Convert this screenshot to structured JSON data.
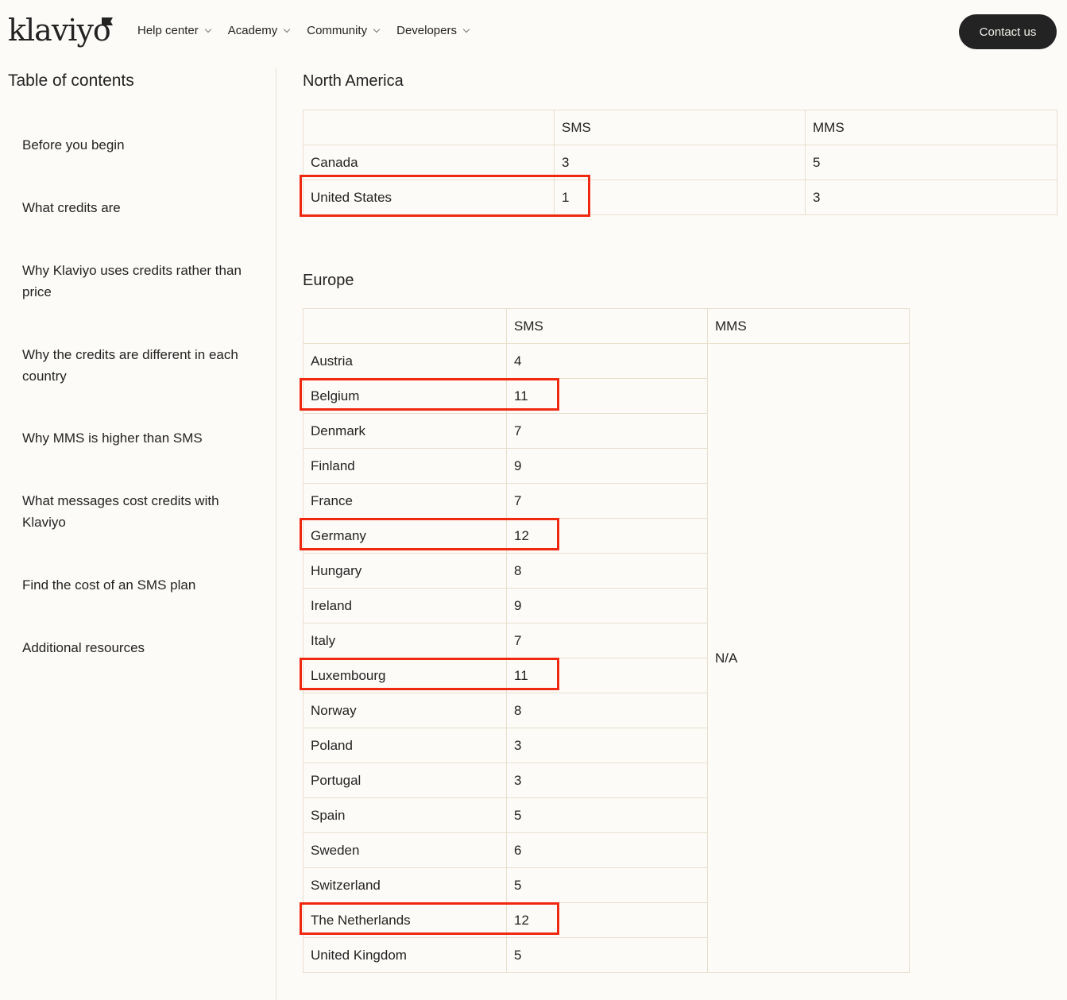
{
  "header": {
    "logo": "klaviyo",
    "nav": [
      {
        "label": "Help center"
      },
      {
        "label": "Academy"
      },
      {
        "label": "Community"
      },
      {
        "label": "Developers"
      }
    ],
    "contact_label": "Contact us"
  },
  "toc": {
    "title": "Table of contents",
    "items": [
      {
        "label": "Before you begin"
      },
      {
        "label": "What credits are"
      },
      {
        "label": "Why Klaviyo uses credits rather than price"
      },
      {
        "label": "Why the credits are different in each country"
      },
      {
        "label": "Why MMS is higher than SMS"
      },
      {
        "label": "What messages cost credits with Klaviyo"
      },
      {
        "label": "Find the cost of an SMS plan"
      },
      {
        "label": "Additional resources"
      }
    ]
  },
  "north_america": {
    "title": "North America",
    "headers": [
      "",
      "SMS",
      "MMS"
    ],
    "rows": [
      {
        "country": "Canada",
        "sms": "3",
        "mms": "5"
      },
      {
        "country": "United States",
        "sms": "1",
        "mms": "3"
      }
    ],
    "highlighted": [
      1
    ]
  },
  "europe": {
    "title": "Europe",
    "headers": [
      "",
      "SMS",
      "MMS"
    ],
    "mms_all": "N/A",
    "rows": [
      {
        "country": "Austria",
        "sms": "4"
      },
      {
        "country": "Belgium",
        "sms": "11"
      },
      {
        "country": "Denmark",
        "sms": "7"
      },
      {
        "country": "Finland",
        "sms": "9"
      },
      {
        "country": "France",
        "sms": "7"
      },
      {
        "country": "Germany",
        "sms": "12"
      },
      {
        "country": "Hungary",
        "sms": "8"
      },
      {
        "country": "Ireland",
        "sms": "9"
      },
      {
        "country": "Italy",
        "sms": "7"
      },
      {
        "country": "Luxembourg",
        "sms": "11"
      },
      {
        "country": "Norway",
        "sms": "8"
      },
      {
        "country": "Poland",
        "sms": "3"
      },
      {
        "country": "Portugal",
        "sms": "3"
      },
      {
        "country": "Spain",
        "sms": "5"
      },
      {
        "country": "Sweden",
        "sms": "6"
      },
      {
        "country": "Switzerland",
        "sms": "5"
      },
      {
        "country": "The Netherlands",
        "sms": "12"
      },
      {
        "country": "United Kingdom",
        "sms": "5"
      }
    ],
    "highlighted": [
      1,
      5,
      9,
      16
    ]
  },
  "colors": {
    "highlight": "#f0280f",
    "background": "#fdfbf8",
    "border": "#e8dfcd",
    "button": "#232323"
  }
}
